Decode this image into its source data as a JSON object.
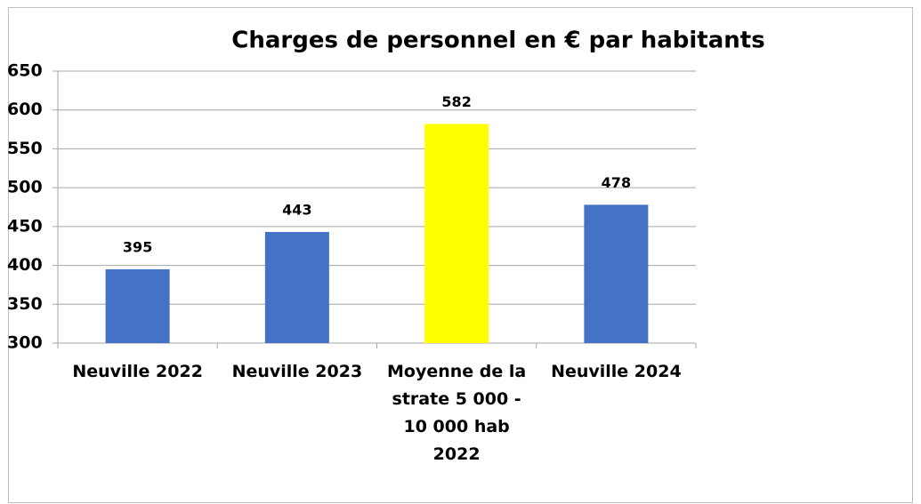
{
  "chart_data": {
    "type": "bar",
    "title": "Charges de personnel en € par habitants",
    "categories": [
      "Neuville 2022",
      "Neuville 2023",
      "Moyenne de la strate 5 000 - 10 000 hab 2022",
      "Neuville 2024"
    ],
    "values": [
      395,
      443,
      582,
      478
    ],
    "colors": [
      "#4472c4",
      "#4472c4",
      "#ffff00",
      "#4472c4"
    ],
    "ylim": [
      300,
      650
    ],
    "yticks": [
      300,
      350,
      400,
      450,
      500,
      550,
      600,
      650
    ],
    "grid": true
  }
}
